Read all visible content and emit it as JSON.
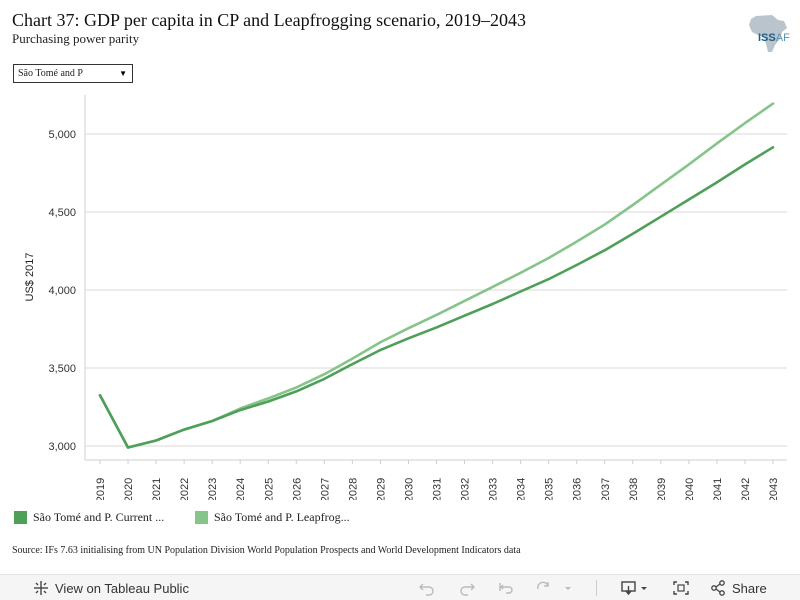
{
  "header": {
    "title": "Chart 37: GDP per capita in CP and Leapfrogging scenario, 2019–2043",
    "subtitle": "Purchasing power parity"
  },
  "logo": {
    "text_main": "ISS",
    "text_suffix": "AF"
  },
  "filter": {
    "selected": "São Tomé and P"
  },
  "chart_data": {
    "type": "line",
    "ylabel": "US$ 2017",
    "x": [
      2019,
      2020,
      2021,
      2022,
      2023,
      2024,
      2025,
      2026,
      2027,
      2028,
      2029,
      2030,
      2031,
      2032,
      2033,
      2034,
      2035,
      2036,
      2037,
      2038,
      2039,
      2040,
      2041,
      2042,
      2043
    ],
    "ylim": [
      2910,
      5250
    ],
    "yticks": [
      3000,
      3500,
      4000,
      4500,
      5000
    ],
    "ytick_labels": [
      "3,000",
      "3,500",
      "4,000",
      "4,500",
      "5,000"
    ],
    "grid": "horizontal",
    "series": [
      {
        "name": "São Tomé and P. Current ...",
        "color": "#4e9f58",
        "values": [
          3325,
          2990,
          3035,
          3105,
          3160,
          3230,
          3285,
          3350,
          3430,
          3525,
          3615,
          3690,
          3760,
          3835,
          3910,
          3990,
          4070,
          4160,
          4255,
          4360,
          4470,
          4580,
          4690,
          4805,
          4915
        ]
      },
      {
        "name": "São Tomé and P. Leapfrog...",
        "color": "#86c48a",
        "values": [
          3325,
          2990,
          3035,
          3105,
          3160,
          3240,
          3305,
          3375,
          3460,
          3560,
          3665,
          3755,
          3840,
          3930,
          4020,
          4110,
          4205,
          4310,
          4420,
          4545,
          4675,
          4805,
          4940,
          5070,
          5195
        ]
      }
    ]
  },
  "legend": {
    "items": [
      {
        "label": "São Tomé and P. Current ...",
        "color": "#4e9f58"
      },
      {
        "label": "São Tomé and P. Leapfrog...",
        "color": "#86c48a"
      }
    ]
  },
  "source": "Source: IFs 7.63 initialising from UN Population Division World Population Prospects and World Development Indicators data",
  "footer": {
    "view_label": "View on Tableau Public",
    "share_label": "Share"
  }
}
